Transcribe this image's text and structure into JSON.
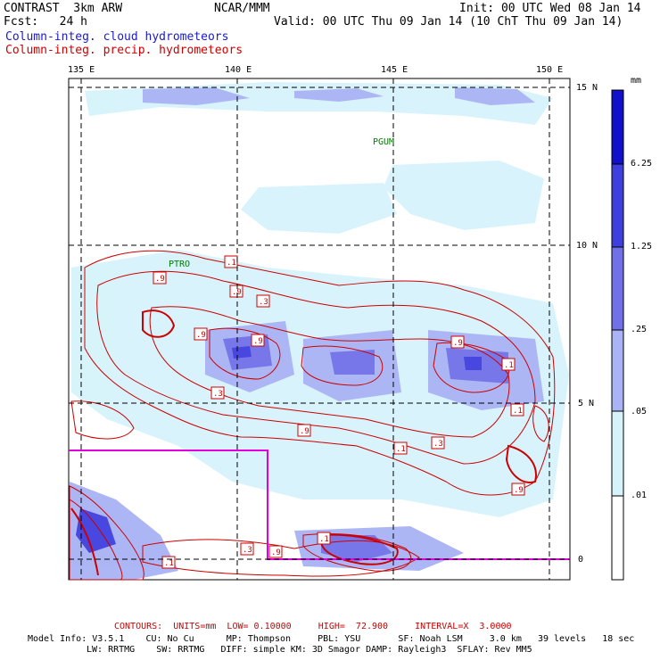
{
  "header": {
    "model": "CONTRAST  3km ARW",
    "org": "NCAR/MMM",
    "init": "Init: 00 UTC Wed 08 Jan 14",
    "fcst": "Fcst:   24 h",
    "valid": "Valid: 00 UTC Thu 09 Jan 14 (10 ChT Thu 09 Jan 14)",
    "field1": "Column-integ. cloud hydrometeors",
    "field2": "Column-integ. precip. hydrometeors"
  },
  "map": {
    "lon_labels": [
      "135 E",
      "140 E",
      "145 E",
      "150 E"
    ],
    "lat_labels": [
      "15 N",
      "10 N",
      "5 N",
      "0"
    ],
    "stations": [
      "PGUM",
      "PTRO"
    ],
    "contour_labels": [
      ".1",
      ".9",
      ".9",
      ".3",
      ".9",
      ".9",
      ".3",
      ".9",
      ".1",
      ".9",
      ".1",
      ".9",
      ".1",
      ".3",
      ".1",
      ".3",
      ".9",
      ".1"
    ]
  },
  "colorbar": {
    "unit": "mm",
    "levels": [
      "6.25",
      "1.25",
      ".25",
      ".05",
      ".01"
    ],
    "colors": [
      "#1111cc",
      "#3f3fe0",
      "#7070e8",
      "#a9b3f5",
      "#d6f3fb",
      "#ffffff"
    ]
  },
  "footer": {
    "contours": "CONTOURS:  UNITS=mm  LOW= 0.10000     HIGH=  72.900     INTERVAL=X  3.0000",
    "model_info": "Model Info: V3.5.1    CU: No Cu      MP: Thompson     PBL: YSU       SF: Noah LSM     3.0 km   39 levels   18 sec",
    "model_info2": "LW: RRTMG    SW: RRTMG   DIFF: simple KM: 3D Smagor DAMP: Rayleigh3  SFLAY: Rev MM5"
  }
}
